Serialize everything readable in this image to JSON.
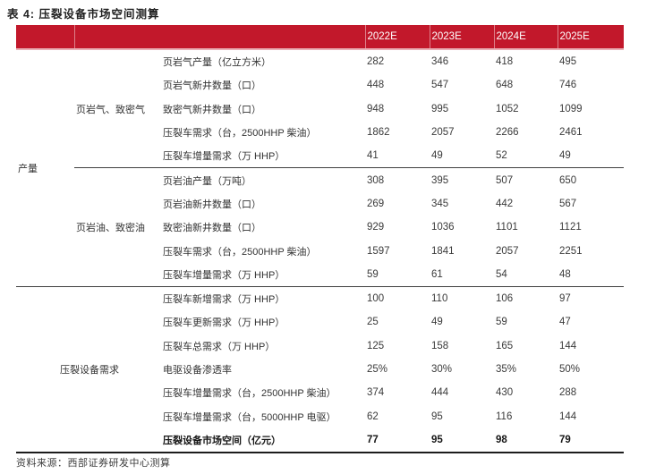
{
  "title": "表 4: 压裂设备市场空间测算",
  "colors": {
    "header_red": "#C2182B",
    "header_underline_pink": "#E9B0B6",
    "line_dark": "#3f3f3f",
    "bottom_border": "#1c1c1c",
    "header_text": "#ffffff",
    "body_text": "#333333"
  },
  "header": {
    "corner_left": "",
    "corner_right": "",
    "years": [
      "2022E",
      "2023E",
      "2024E",
      "2025E"
    ]
  },
  "sections": [
    {
      "group": "产量",
      "subgroups": [
        {
          "label": "页岩气、致密气",
          "rows": [
            {
              "metric": "页岩气产量（亿立方米）",
              "values": [
                "282",
                "346",
                "418",
                "495"
              ]
            },
            {
              "metric": "页岩气新井数量（口）",
              "values": [
                "448",
                "547",
                "648",
                "746"
              ]
            },
            {
              "metric": "致密气新井数量（口）",
              "values": [
                "948",
                "995",
                "1052",
                "1099"
              ]
            },
            {
              "metric": "压裂车需求（台，2500HHP 柴油）",
              "values": [
                "1862",
                "2057",
                "2266",
                "2461"
              ]
            },
            {
              "metric": "压裂车增量需求（万 HHP）",
              "values": [
                "41",
                "49",
                "52",
                "49"
              ]
            }
          ]
        },
        {
          "label": "页岩油、致密油",
          "rows": [
            {
              "metric": "页岩油产量（万吨）",
              "values": [
                "308",
                "395",
                "507",
                "650"
              ]
            },
            {
              "metric": "页岩油新井数量（口）",
              "values": [
                "269",
                "345",
                "442",
                "567"
              ]
            },
            {
              "metric": "致密油新井数量（口）",
              "values": [
                "929",
                "1036",
                "1101",
                "1121"
              ]
            },
            {
              "metric": "压裂车需求（台，2500HHP 柴油）",
              "values": [
                "1597",
                "1841",
                "2057",
                "2251"
              ]
            },
            {
              "metric": "压裂车增量需求（万 HHP）",
              "values": [
                "59",
                "61",
                "54",
                "48"
              ]
            }
          ]
        }
      ]
    },
    {
      "group": "压裂设备需求",
      "rows": [
        {
          "metric": "压裂车新增需求（万 HHP）",
          "values": [
            "100",
            "110",
            "106",
            "97"
          ]
        },
        {
          "metric": "压裂车更新需求（万 HHP）",
          "values": [
            "25",
            "49",
            "59",
            "47"
          ]
        },
        {
          "metric": "压裂车总需求（万 HHP）",
          "values": [
            "125",
            "158",
            "165",
            "144"
          ]
        },
        {
          "metric": "电驱设备渗透率",
          "values": [
            "25%",
            "30%",
            "35%",
            "50%"
          ]
        },
        {
          "metric": "压裂车增量需求（台，2500HHP 柴油）",
          "values": [
            "374",
            "444",
            "430",
            "288"
          ]
        },
        {
          "metric": "压裂车增量需求（台，5000HHP 电驱）",
          "values": [
            "62",
            "95",
            "116",
            "144"
          ]
        },
        {
          "metric": "压裂设备市场空间（亿元）",
          "values": [
            "77",
            "95",
            "98",
            "79"
          ],
          "bold": true
        }
      ]
    }
  ],
  "footer": {
    "source": "资料来源：西部证券研发中心测算"
  }
}
